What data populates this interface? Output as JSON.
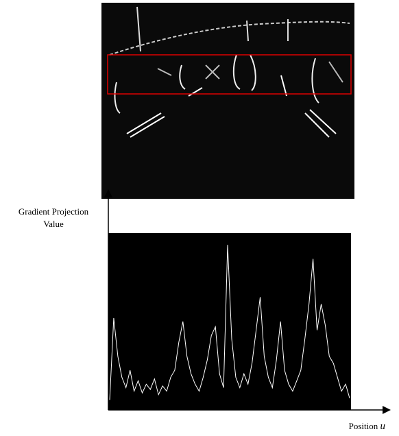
{
  "chart_data": {
    "type": "line",
    "y_label": [
      "Gradient Projection",
      "Value"
    ],
    "x_label": [
      "Position",
      "u"
    ],
    "x": [
      0,
      1,
      2,
      3,
      4,
      5,
      6,
      7,
      8,
      9,
      10,
      11,
      12,
      13,
      14,
      15,
      16,
      17,
      18,
      19,
      20,
      21,
      22,
      23,
      24,
      25,
      26,
      27,
      28,
      29,
      30,
      31,
      32,
      33,
      34,
      35,
      36,
      37,
      38,
      39,
      40,
      41,
      42,
      43,
      44,
      45,
      46,
      47,
      48,
      49,
      50,
      51,
      52,
      53,
      54,
      55,
      56,
      57,
      58,
      59
    ],
    "values": [
      5,
      52,
      30,
      18,
      12,
      22,
      10,
      16,
      9,
      14,
      11,
      17,
      8,
      13,
      10,
      18,
      22,
      38,
      50,
      30,
      20,
      14,
      10,
      18,
      28,
      42,
      47,
      20,
      12,
      94,
      40,
      18,
      12,
      20,
      14,
      26,
      45,
      64,
      30,
      18,
      12,
      28,
      50,
      22,
      14,
      10,
      16,
      22,
      40,
      60,
      86,
      45,
      60,
      48,
      30,
      26,
      18,
      10,
      14,
      6
    ],
    "color": "#ffffff",
    "xlim": [
      0,
      59
    ],
    "ylim": [
      0,
      100
    ]
  }
}
